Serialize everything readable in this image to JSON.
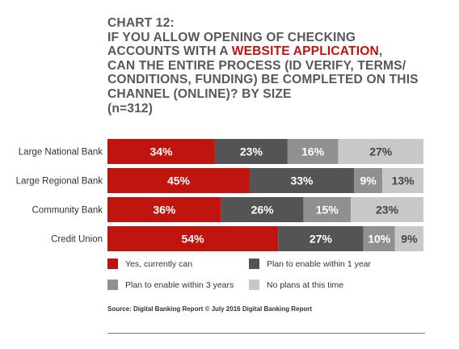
{
  "title": {
    "line1": "CHART 12:",
    "line2": "IF YOU ALLOW OPENING OF CHECKING",
    "line3_pre": "ACCOUNTS WITH A ",
    "line3_highlight": "WEBSITE APPLICATION",
    "line3_post": ",",
    "line4": "CAN THE ENTIRE PROCESS (ID VERIFY, TERMS/",
    "line5": "CONDITIONS, FUNDING) BE COMPLETED ON THIS",
    "line6": "CHANNEL (ONLINE)? BY SIZE",
    "line7": "(n=312)"
  },
  "colors": {
    "title_text": "#585858",
    "title_highlight": "#c0150f"
  },
  "chart_data": {
    "type": "bar",
    "orientation": "horizontal",
    "stacked": true,
    "percent_stacked": true,
    "categories": [
      "Large National Bank",
      "Large Regional Bank",
      "Community Bank",
      "Credit Union"
    ],
    "series": [
      {
        "name": "Yes, currently can",
        "values": [
          34,
          45,
          36,
          54
        ],
        "color": "#c0150f",
        "label_color": "#ffffff"
      },
      {
        "name": "Plan to enable within 1 year",
        "values": [
          23,
          33,
          26,
          27
        ],
        "color": "#545454",
        "label_color": "#ffffff"
      },
      {
        "name": "Plan to enable within 3 years",
        "values": [
          16,
          9,
          15,
          10
        ],
        "color": "#909090",
        "label_color": "#ffffff"
      },
      {
        "name": "No plans at this time",
        "values": [
          27,
          13,
          23,
          9
        ],
        "color": "#c8c8c8",
        "label_color": "#444444"
      }
    ],
    "value_suffix": "%",
    "xlim": [
      0,
      100
    ],
    "grid": false,
    "legend": "bottom"
  },
  "source": "Source: Digital Banking Report © July 2016 Digital Banking Report"
}
